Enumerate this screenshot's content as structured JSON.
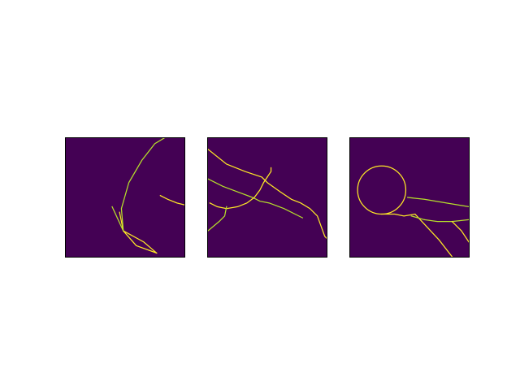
{
  "figure": {
    "colors": {
      "background": "#440154",
      "stroke_bright": "#fde725",
      "stroke_mid": "#b5de2b",
      "page": "#ffffff",
      "frame": "#000000"
    }
  },
  "chart_data": [
    {
      "type": "heatmap",
      "grid": false,
      "colormap": "viridis",
      "xlim": [
        0,
        64
      ],
      "ylim": [
        0,
        64
      ],
      "strokes": [
        {
          "name": "",
          "kind": "polyline",
          "points": [
            [
              49,
              2
            ],
            [
              42,
              8
            ],
            [
              31,
              14
            ],
            [
              38,
              6
            ],
            [
              49,
              2
            ]
          ]
        },
        {
          "name": "",
          "kind": "polyline",
          "points": [
            [
              31,
              14
            ],
            [
              25,
              27
            ]
          ]
        },
        {
          "name": "",
          "kind": "polyline",
          "points": [
            [
              31,
              14
            ],
            [
              29,
              24
            ]
          ]
        },
        {
          "name": "",
          "kind": "polyline",
          "points": [
            [
              31,
              14
            ],
            [
              30,
              26
            ],
            [
              34,
              40
            ],
            [
              41,
              52
            ],
            [
              48,
              61
            ],
            [
              53,
              64
            ]
          ]
        },
        {
          "name": "",
          "kind": "polyline",
          "points": [
            [
              51,
              33
            ],
            [
              55,
              31
            ],
            [
              60,
              29
            ],
            [
              64,
              28
            ]
          ]
        }
      ]
    },
    {
      "type": "heatmap",
      "grid": false,
      "colormap": "viridis",
      "xlim": [
        0,
        64
      ],
      "ylim": [
        0,
        64
      ],
      "strokes": [
        {
          "name": "",
          "kind": "polyline",
          "points": [
            [
              0,
              58
            ],
            [
              10,
              50
            ],
            [
              20,
              46
            ],
            [
              29,
              43
            ],
            [
              32,
              40
            ],
            [
              39,
              35
            ],
            [
              45,
              31
            ],
            [
              50,
              29
            ],
            [
              55,
              26
            ],
            [
              59,
              22
            ],
            [
              63,
              11
            ],
            [
              64,
              10
            ]
          ]
        },
        {
          "name": "",
          "kind": "polyline",
          "points": [
            [
              0,
              42
            ],
            [
              8,
              38
            ],
            [
              16,
              35
            ],
            [
              24,
              32
            ],
            [
              28,
              30
            ],
            [
              33,
              29
            ],
            [
              41,
              26
            ],
            [
              51,
              21
            ]
          ]
        },
        {
          "name": "",
          "kind": "polyline",
          "points": [
            [
              1,
              29
            ],
            [
              5,
              27
            ],
            [
              10,
              26
            ],
            [
              16,
              27
            ],
            [
              21,
              29
            ],
            [
              25,
              32
            ],
            [
              28,
              36
            ],
            [
              30,
              40
            ],
            [
              32,
              43
            ]
          ]
        },
        {
          "name": "",
          "kind": "polyline",
          "points": [
            [
              0,
              14
            ],
            [
              6,
              19
            ],
            [
              9,
              22
            ],
            [
              10,
              27
            ]
          ]
        },
        {
          "name": "",
          "kind": "polyline",
          "points": [
            [
              32,
              43
            ],
            [
              34,
              46
            ],
            [
              34,
              48
            ]
          ]
        }
      ]
    },
    {
      "type": "heatmap",
      "grid": false,
      "colormap": "viridis",
      "xlim": [
        0,
        64
      ],
      "ylim": [
        0,
        64
      ],
      "strokes": [
        {
          "name": "",
          "kind": "circle",
          "cx": 17,
          "cy": 36,
          "r": 13
        },
        {
          "name": "",
          "kind": "polyline",
          "points": [
            [
              31,
              32
            ],
            [
              40,
              31
            ],
            [
              52,
              29
            ],
            [
              64,
              27
            ]
          ]
        },
        {
          "name": "",
          "kind": "polyline",
          "points": [
            [
              17,
              23
            ],
            [
              24,
              23
            ],
            [
              29,
              22
            ],
            [
              35,
              23
            ],
            [
              48,
              9
            ],
            [
              55,
              0
            ]
          ]
        },
        {
          "name": "",
          "kind": "polyline",
          "points": [
            [
              40,
              20
            ],
            [
              47,
              19
            ],
            [
              55,
              19
            ],
            [
              64,
              20
            ]
          ]
        },
        {
          "name": "",
          "kind": "polyline",
          "points": [
            [
              55,
              19
            ],
            [
              60,
              14
            ],
            [
              64,
              8
            ]
          ]
        },
        {
          "name": "",
          "kind": "polyline",
          "points": [
            [
              33,
              22
            ],
            [
              40,
              20
            ]
          ]
        }
      ]
    }
  ]
}
